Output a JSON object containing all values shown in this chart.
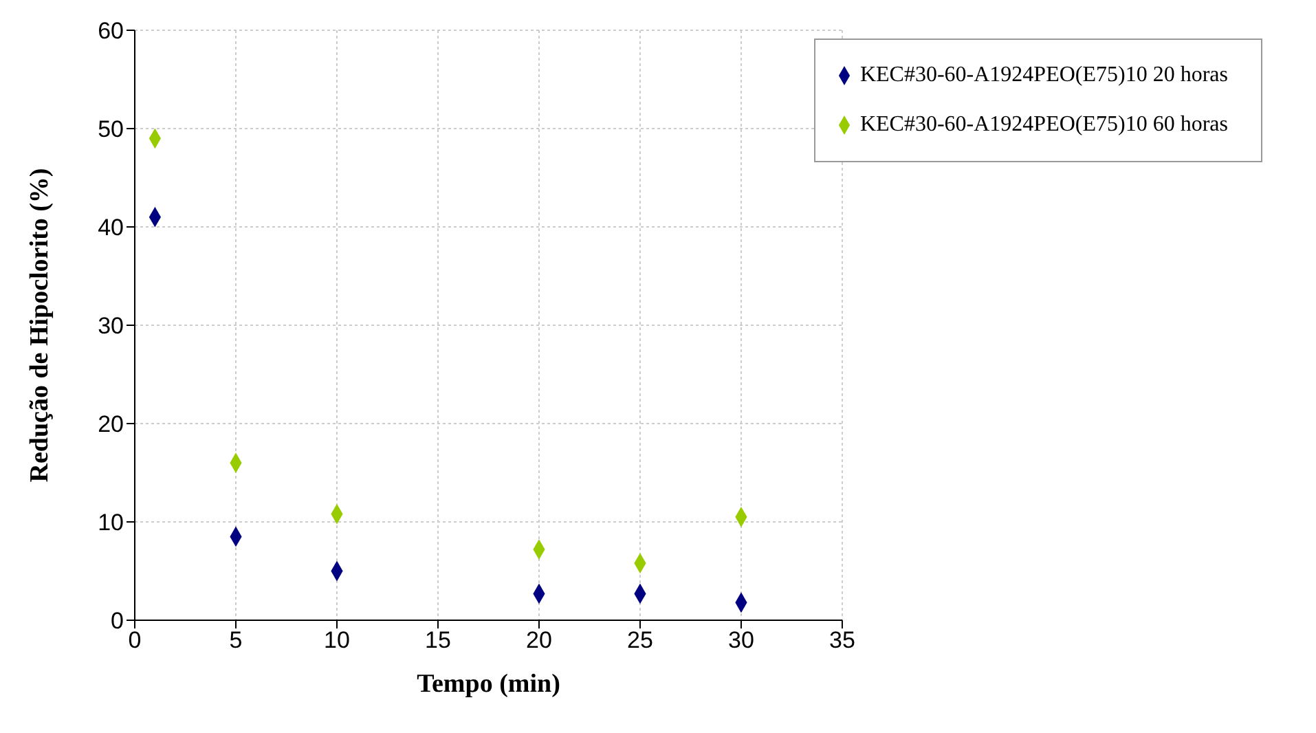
{
  "chart_data": {
    "type": "scatter",
    "xlabel": "Tempo (min)",
    "ylabel": "Redução de Hipoclorito (%)",
    "x": [
      1,
      5,
      10,
      20,
      25,
      30
    ],
    "series": [
      {
        "name": "KEC#30-60-A1924PEO(E75)10 20 horas",
        "color": "#000080",
        "values": [
          41,
          8.5,
          5,
          2.7,
          2.7,
          1.8
        ]
      },
      {
        "name": "KEC#30-60-A1924PEO(E75)10 60 horas",
        "color": "#99cc00",
        "values": [
          49,
          16,
          10.8,
          7.2,
          5.8,
          10.5
        ]
      }
    ],
    "xlim": [
      0,
      35
    ],
    "xticks": [
      0,
      5,
      10,
      15,
      20,
      25,
      30,
      35
    ],
    "ylim": [
      0,
      60
    ],
    "yticks": [
      0,
      10,
      20,
      30,
      40,
      50,
      60
    ],
    "grid": true,
    "legend": "top right",
    "marker": "diamond"
  }
}
